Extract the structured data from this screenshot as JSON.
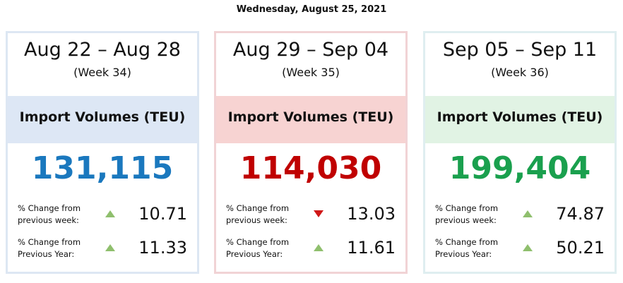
{
  "header": {
    "date": "Wednesday, August 25, 2021"
  },
  "cards": [
    {
      "range": "Aug 22 – Aug 28",
      "week": "(Week 34)",
      "metric": "Import Volumes (TEU)",
      "value": "131,115",
      "color": "#1a78be",
      "band": "#dde7f5",
      "border": "#dde7f3",
      "rows": [
        {
          "label": "% Change from previous week:",
          "trend": "up",
          "value": "10.71"
        },
        {
          "label": "% Change from Previous Year:",
          "trend": "up",
          "value": "11.33"
        }
      ]
    },
    {
      "range": "Aug 29 – Sep 04",
      "week": "(Week 35)",
      "metric": "Import Volumes (TEU)",
      "value": "114,030",
      "color": "#c00000",
      "band": "#f7d3d2",
      "border": "#f1d3d5",
      "rows": [
        {
          "label": "% Change from previous week:",
          "trend": "down",
          "value": "13.03"
        },
        {
          "label": "% Change from Previous Year:",
          "trend": "up",
          "value": "11.61"
        }
      ]
    },
    {
      "range": "Sep 05 – Sep 11",
      "week": "(Week 36)",
      "metric": "Import Volumes (TEU)",
      "value": "199,404",
      "color": "#1aa04e",
      "band": "#e1f3e4",
      "border": "#dfeef0",
      "rows": [
        {
          "label": "% Change from previous week:",
          "trend": "up",
          "value": "74.87"
        },
        {
          "label": "% Change from Previous Year:",
          "trend": "up",
          "value": "50.21"
        }
      ]
    }
  ]
}
